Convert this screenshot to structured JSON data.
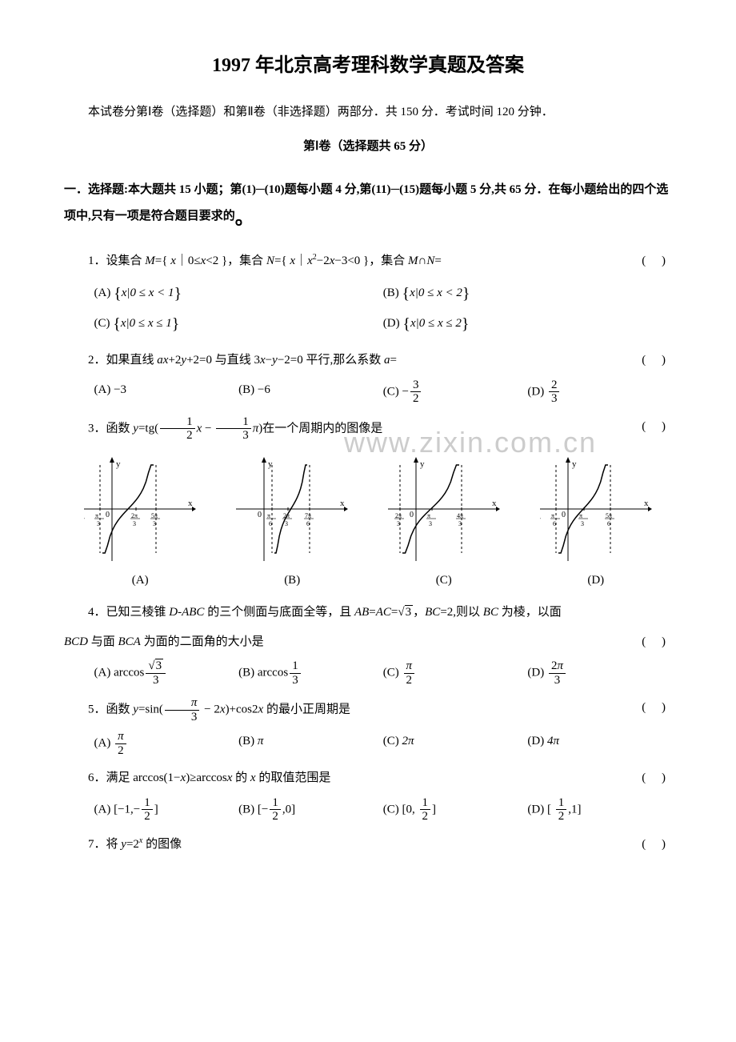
{
  "title": "1997 年北京高考理科数学真题及答案",
  "intro": "本试卷分第Ⅰ卷（选择题）和第Ⅱ卷（非选择题）两部分．共 150 分．考试时间 120 分钟．",
  "section1_header": "第Ⅰ卷（选择题共 65 分）",
  "instruction": "一．选择题:本大题共 15 小题；第(1)─(10)题每小题 4 分,第(11)─(15)题每小题 5 分,共 65 分．在每小题给出的四个选项中,只有一项是符合题目要求的",
  "dot": "。",
  "paren": "(    )",
  "watermark_text": "www.zixin.com.cn",
  "q1": {
    "text_a": "1．设集合 ",
    "text_b": "={ ",
    "text_c": "｜0≤",
    "text_d": "<2 }，集合 ",
    "text_e": "={ ",
    "text_f": "｜",
    "text_g": "−2",
    "text_h": "−3<0 }，集合 ",
    "text_i": "∩",
    "text_j": "=",
    "M": "M",
    "N": "N",
    "x": "x",
    "A": "0 ≤ x < 1",
    "B": "0 ≤ x < 2",
    "C": "0 ≤ x ≤ 1",
    "D": "0 ≤ x ≤ 2"
  },
  "q2": {
    "text_a": "2．如果直线 ",
    "text_b": "+2",
    "text_c": "+2=0 与直线 3",
    "text_d": "−",
    "text_e": "−2=0 平行,那么系数 ",
    "text_f": "=",
    "a": "a",
    "x": "x",
    "y": "y",
    "A": "−3",
    "B": "−6"
  },
  "q3": {
    "text_a": "3．函数 ",
    "text_b": "=tg(",
    "text_c": ")在一个周期内的图像是",
    "y": "y",
    "x": "x",
    "labels": {
      "A": "(A)",
      "B": "(B)",
      "C": "(C)",
      "D": "(D)"
    }
  },
  "q4": {
    "text_a": "4．已知三棱锥 ",
    "text_b": " 的三个侧面与底面全等，且 ",
    "text_c": "=",
    "text_d": "=",
    "text_e": "，",
    "text_f": "=2,则以 ",
    "text_g": " 为棱，以面 ",
    "text_h": " 与面 ",
    "text_i": " 为面的二面角的大小是",
    "DABC": "D-ABC",
    "AB": "AB",
    "AC": "AC",
    "BC": "BC",
    "BCD": "BCD",
    "BCA": "BCA"
  },
  "q5": {
    "text_a": "5．函数 ",
    "text_b": "=sin(",
    "text_c": ")+cos2",
    "text_d": " 的最小正周期是",
    "y": "y",
    "x": "x",
    "B": "π"
  },
  "q6": {
    "text_a": "6．满足 arccos(1−",
    "text_b": ")≥arccos",
    "text_c": " 的 ",
    "text_d": " 的取值范围是",
    "x": "x"
  },
  "q7": {
    "text_a": "7．将 ",
    "text_b": "=2",
    "text_c": " 的图像",
    "y": "y",
    "x": "x"
  },
  "opt": {
    "A": "(A)",
    "B": "(B)",
    "C": "(C)",
    "D": "(D)"
  },
  "graph": {
    "colors": {
      "axis": "#000",
      "curve": "#000",
      "dash": "#000"
    },
    "A": {
      "xticks": [
        {
          "x": 20,
          "label_top": "π",
          "label_bot": "3",
          "neg": true
        },
        {
          "x": 65,
          "label_top": "2π",
          "label_bot": "3"
        },
        {
          "x": 90,
          "label_top": "5π",
          "label_bot": "3"
        }
      ],
      "asym": [
        20,
        90
      ]
    },
    "B": {
      "xticks": [
        {
          "x": 45,
          "label_top": "π",
          "label_bot": "6"
        },
        {
          "x": 65,
          "label_top": "2π",
          "label_bot": "3"
        },
        {
          "x": 92,
          "label_top": "7π",
          "label_bot": "6"
        }
      ],
      "asym": [
        45,
        92
      ]
    },
    "C": {
      "xticks": [
        {
          "x": 15,
          "label_top": "2π",
          "label_bot": "3",
          "neg": true
        },
        {
          "x": 55,
          "label_top": "π",
          "label_bot": "3"
        },
        {
          "x": 92,
          "label_top": "4π",
          "label_bot": "3"
        }
      ],
      "asym": [
        15,
        92
      ]
    },
    "D": {
      "xticks": [
        {
          "x": 20,
          "label_top": "π",
          "label_bot": "6",
          "neg": true
        },
        {
          "x": 55,
          "label_top": "π",
          "label_bot": "3"
        },
        {
          "x": 88,
          "label_top": "5π",
          "label_bot": "6"
        }
      ],
      "asym": [
        20,
        88
      ]
    }
  }
}
